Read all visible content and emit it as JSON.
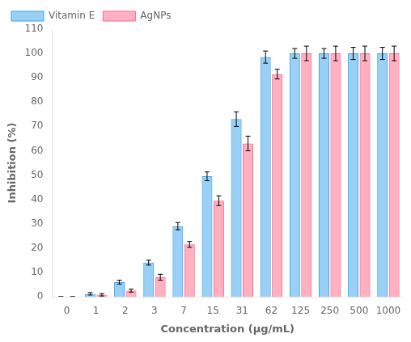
{
  "chart_data": {
    "type": "bar",
    "categories": [
      "0",
      "1",
      "2",
      "3",
      "7",
      "15",
      "31",
      "62",
      "125",
      "250",
      "500",
      "1000"
    ],
    "series": [
      {
        "name": "Vitamin E",
        "values": [
          0,
          1.2,
          6.0,
          14.0,
          29.0,
          49.5,
          73.0,
          98.5,
          100.0,
          100.0,
          100.0,
          100.0
        ],
        "errors": [
          0,
          0.5,
          0.8,
          1.0,
          1.5,
          1.8,
          3.0,
          2.5,
          2.0,
          2.0,
          2.5,
          2.5
        ]
      },
      {
        "name": "AgNPs",
        "values": [
          0,
          0.8,
          2.5,
          8.0,
          21.5,
          39.5,
          63.0,
          91.5,
          100.0,
          100.0,
          100.0,
          100.0
        ],
        "errors": [
          0,
          0.5,
          0.6,
          1.2,
          1.2,
          2.0,
          3.0,
          2.0,
          3.0,
          3.0,
          3.0,
          3.0
        ]
      }
    ],
    "xlabel": "Concentration (μg/mL)",
    "ylabel": "Inhibition (%)",
    "ylim": [
      0,
      110
    ],
    "yticks": [
      0,
      10,
      20,
      30,
      40,
      50,
      60,
      70,
      80,
      90,
      100,
      110
    ],
    "grid": false,
    "legend": "upper left"
  }
}
